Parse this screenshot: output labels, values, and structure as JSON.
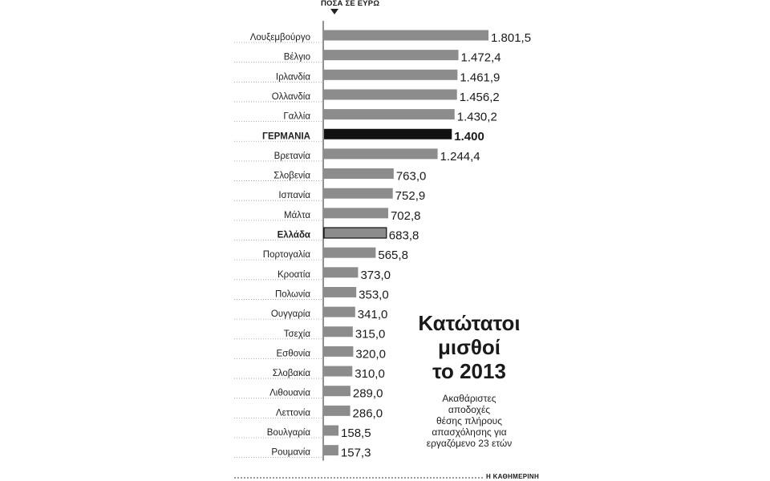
{
  "chart_data": {
    "type": "bar",
    "orientation": "horizontal",
    "title": "Κατώτατοι\nμισθοί\nτο 2013",
    "subtitle": "Ακαθάριστες\nαποδοχές\nθέσης πλήρους\nαπασχόλησης για\nεργαζόμενο 23 ετών",
    "unit_label": "ΠΟΣΑ ΣΕ ΕΥΡΩ",
    "source": "Η ΚΑΘΗΜΕΡΙΝΗ",
    "categories": [
      "Λουξεμβούργο",
      "Βέλγιο",
      "Ιρλανδία",
      "Ολλανδία",
      "Γαλλία",
      "ΓΕΡΜΑΝΙΑ",
      "Βρετανία",
      "Σλοβενία",
      "Ισπανία",
      "Μάλτα",
      "Ελλάδα",
      "Πορτογαλία",
      "Κροατία",
      "Πολωνία",
      "Ουγγαρία",
      "Τσεχία",
      "Εσθονία",
      "Σλοβακία",
      "Λιθουανία",
      "Λεττονία",
      "Βουλγαρία",
      "Ρουμανία"
    ],
    "values": [
      1801.5,
      1472.4,
      1461.9,
      1456.2,
      1430.2,
      1400,
      1244.4,
      763.0,
      752.9,
      702.8,
      683.8,
      565.8,
      373.0,
      353.0,
      341.0,
      315.0,
      320.0,
      310.0,
      289.0,
      286.0,
      158.5,
      157.3
    ],
    "value_labels": [
      "1.801,5",
      "1.472,4",
      "1.461,9",
      "1.456,2",
      "1.430,2",
      "1.400",
      "1.244,4",
      "763,0",
      "752,9",
      "702,8",
      "683,8",
      "565,8",
      "373,0",
      "353,0",
      "341,0",
      "315,0",
      "320,0",
      "310,0",
      "289,0",
      "286,0",
      "158,5",
      "157,3"
    ],
    "highlight": {
      "ΓΕΡΜΑΝΙΑ": "solid-black",
      "Ελλάδα": "outlined"
    },
    "xlim": [
      0,
      1801.5
    ],
    "colors": {
      "bar": "#8c8c8c",
      "highlight": "#111111",
      "outline": "#111111",
      "axis": "#222222",
      "leader": "#999999"
    }
  }
}
